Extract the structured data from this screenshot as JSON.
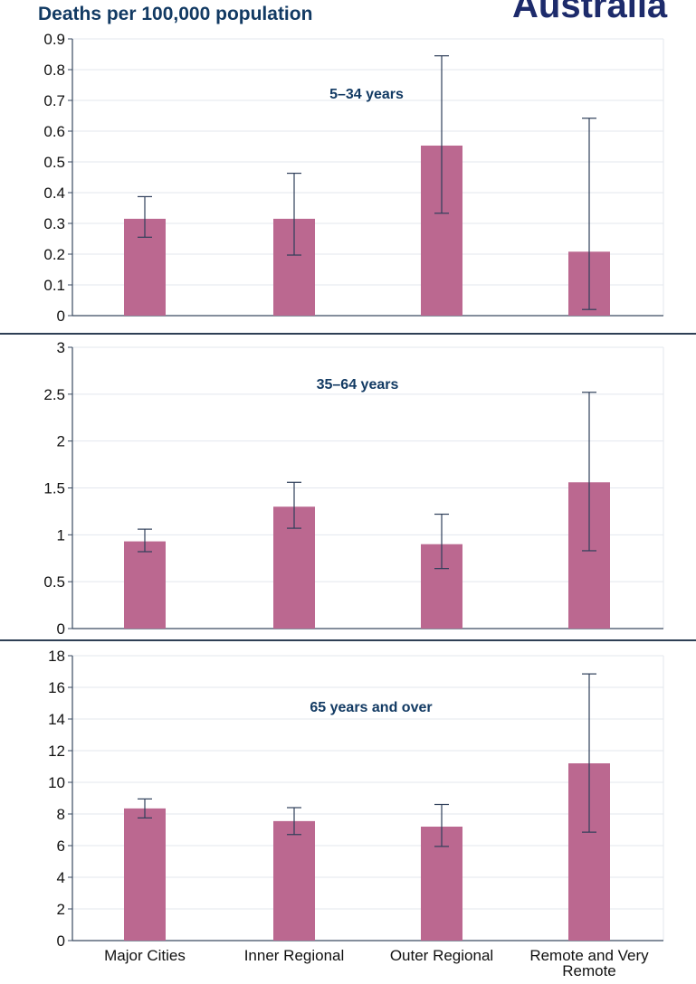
{
  "header": {
    "ylabel": "Deaths per 100,000 population",
    "corner_title": "Australia"
  },
  "colors": {
    "bar": "#bb6890",
    "error_bar": "#2f3f5a",
    "axis": "#3a4a60",
    "grid": "#e3e7ee",
    "text": "#111111",
    "panel_title": "#123a63"
  },
  "chart_data": [
    {
      "type": "bar",
      "title": "5–34 years",
      "categories": [
        "Major Cities",
        "Inner Regional",
        "Outer Regional",
        "Remote and Very Remote"
      ],
      "values": [
        0.315,
        0.315,
        0.553,
        0.208
      ],
      "error_low": [
        0.255,
        0.197,
        0.333,
        0.02
      ],
      "error_high": [
        0.387,
        0.463,
        0.845,
        0.642
      ],
      "ylim": [
        0,
        0.9
      ],
      "yticks": [
        "0",
        "0.1",
        "0.2",
        "0.3",
        "0.4",
        "0.5",
        "0.6",
        "0.7",
        "0.8",
        "0.9"
      ],
      "grid": true
    },
    {
      "type": "bar",
      "title": "35–64 years",
      "categories": [
        "Major Cities",
        "Inner Regional",
        "Outer Regional",
        "Remote and Very Remote"
      ],
      "values": [
        0.93,
        1.3,
        0.9,
        1.56
      ],
      "error_low": [
        0.82,
        1.07,
        0.64,
        0.83
      ],
      "error_high": [
        1.06,
        1.56,
        1.22,
        2.52
      ],
      "ylim": [
        0,
        3
      ],
      "yticks": [
        "0",
        "0.5",
        "1",
        "1.5",
        "2",
        "2.5",
        "3"
      ],
      "grid": true
    },
    {
      "type": "bar",
      "title": "65 years and over",
      "categories": [
        "Major Cities",
        "Inner Regional",
        "Outer Regional",
        "Remote and Very Remote"
      ],
      "values": [
        8.35,
        7.55,
        7.2,
        11.2
      ],
      "error_low": [
        7.75,
        6.7,
        5.95,
        6.85
      ],
      "error_high": [
        8.95,
        8.4,
        8.6,
        16.85
      ],
      "ylim": [
        0,
        18
      ],
      "yticks": [
        "0",
        "2",
        "4",
        "6",
        "8",
        "10",
        "12",
        "14",
        "16",
        "18"
      ],
      "xtick_labels": [
        "Major Cities",
        "Inner Regional",
        "Outer Regional",
        "Remote and Very\nRemote"
      ],
      "grid": true
    }
  ]
}
